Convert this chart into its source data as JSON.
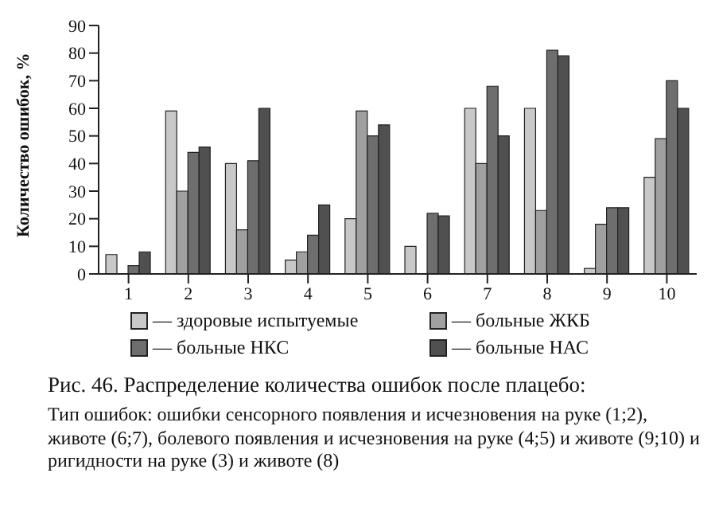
{
  "chart_data": {
    "type": "bar",
    "ylabel": "Количество ошибок, %",
    "categories": [
      "1",
      "2",
      "3",
      "4",
      "5",
      "6",
      "7",
      "8",
      "9",
      "10"
    ],
    "series": [
      {
        "name": "— здоровые испытуемые",
        "color": "#c8c8c8",
        "values": [
          7,
          59,
          40,
          5,
          20,
          10,
          60,
          60,
          2,
          35
        ]
      },
      {
        "name": "— больные ЖКБ",
        "color": "#a0a0a0",
        "values": [
          0,
          30,
          16,
          8,
          59,
          0,
          40,
          23,
          18,
          49
        ]
      },
      {
        "name": "— больные НКС",
        "color": "#6e6e6e",
        "values": [
          3,
          44,
          41,
          14,
          50,
          22,
          68,
          81,
          24,
          70
        ]
      },
      {
        "name": "— больные НАС",
        "color": "#505050",
        "values": [
          8,
          46,
          60,
          25,
          54,
          21,
          50,
          79,
          24,
          60
        ]
      }
    ],
    "ylim": [
      0,
      90
    ],
    "yticks": [
      0,
      10,
      20,
      30,
      40,
      50,
      60,
      70,
      80,
      90
    ],
    "grid": false,
    "legend": "bottom",
    "annotations": [
      "Рис. 46. Распределение количества ошибок после плацебо:",
      "Тип ошибок: ошибки сенсорного появления и исчезновения на руке (1;2), животе (6;7), болевого появления и исчезновения на руке (4;5) и животе (9;10) и ригидности на руке (3) и животе (8)"
    ]
  }
}
